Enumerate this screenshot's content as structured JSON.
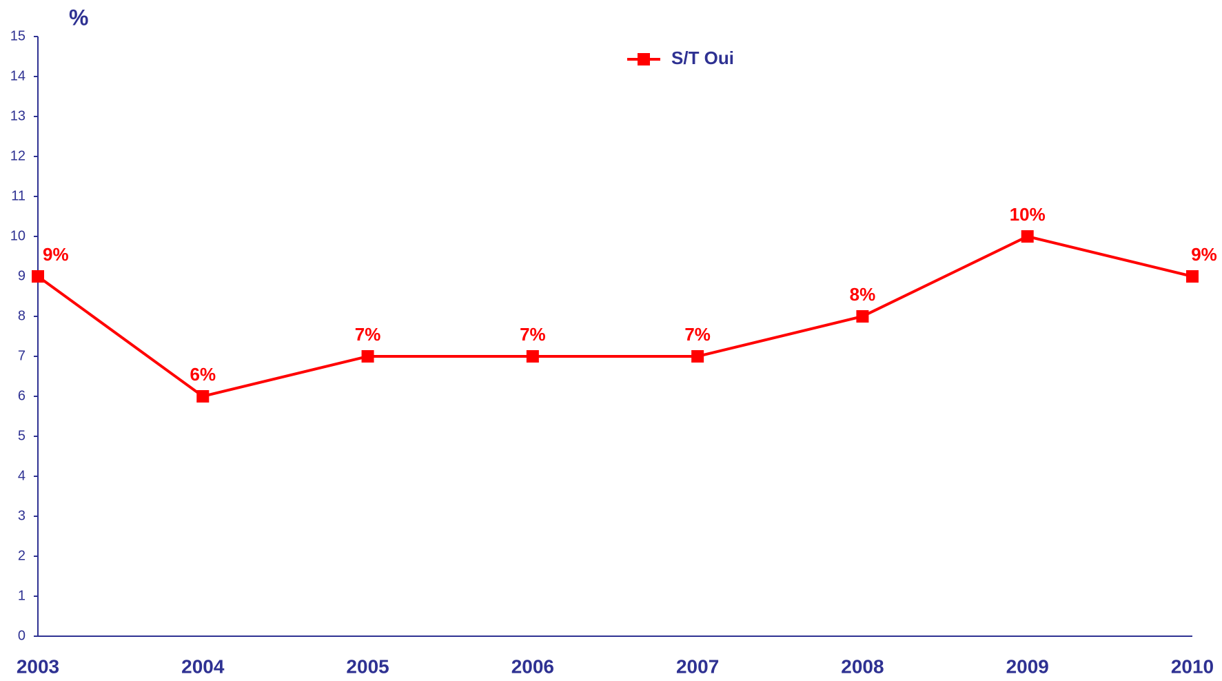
{
  "chart_data": {
    "type": "line",
    "y_label": "%",
    "categories": [
      "2003",
      "2004",
      "2005",
      "2006",
      "2007",
      "2008",
      "2009",
      "2010"
    ],
    "series": [
      {
        "name": "S/T Oui",
        "color": "#ff0000",
        "values": [
          9,
          6,
          7,
          7,
          7,
          8,
          10,
          9
        ],
        "value_labels": [
          "9%",
          "6%",
          "7%",
          "7%",
          "7%",
          "8%",
          "10%",
          "9%"
        ]
      }
    ],
    "ylim": [
      0,
      15
    ],
    "yticks": [
      0,
      1,
      2,
      3,
      4,
      5,
      6,
      7,
      8,
      9,
      10,
      11,
      12,
      13,
      14,
      15
    ],
    "grid": false,
    "legend": "top"
  }
}
